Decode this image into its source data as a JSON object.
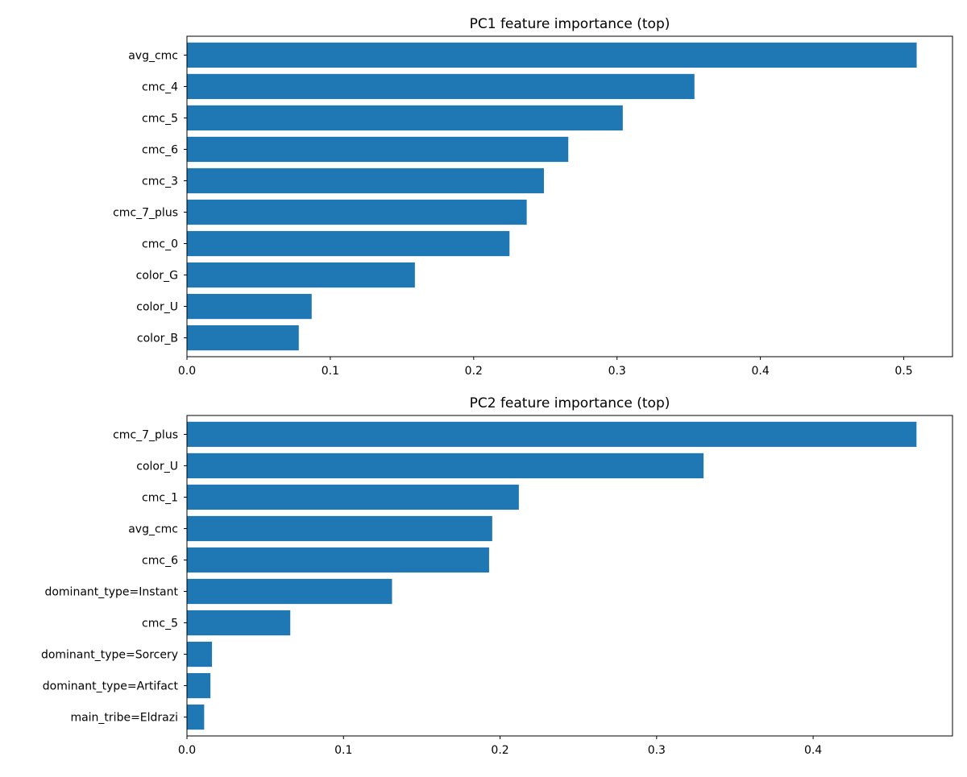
{
  "colors": {
    "bar": "#1f77b4"
  },
  "chart_data": [
    {
      "type": "bar",
      "orientation": "horizontal",
      "title": "PC1 feature importance (top)",
      "xlabel": "",
      "ylabel": "",
      "categories": [
        "avg_cmc",
        "cmc_4",
        "cmc_5",
        "cmc_6",
        "cmc_3",
        "cmc_7_plus",
        "cmc_0",
        "color_G",
        "color_U",
        "color_B"
      ],
      "values": [
        0.509,
        0.354,
        0.304,
        0.266,
        0.249,
        0.237,
        0.225,
        0.159,
        0.087,
        0.078
      ],
      "xlim": [
        0,
        0.534
      ],
      "xticks": [
        0.0,
        0.1,
        0.2,
        0.3,
        0.4,
        0.5
      ],
      "xtick_labels": [
        "0.0",
        "0.1",
        "0.2",
        "0.3",
        "0.4",
        "0.5"
      ],
      "grid": false,
      "legend": "none"
    },
    {
      "type": "bar",
      "orientation": "horizontal",
      "title": "PC2 feature importance (top)",
      "xlabel": "",
      "ylabel": "",
      "categories": [
        "cmc_7_plus",
        "color_U",
        "cmc_1",
        "avg_cmc",
        "cmc_6",
        "dominant_type=Instant",
        "cmc_5",
        "dominant_type=Sorcery",
        "dominant_type=Artifact",
        "main_tribe=Eldrazi"
      ],
      "values": [
        0.466,
        0.33,
        0.212,
        0.195,
        0.193,
        0.131,
        0.066,
        0.016,
        0.015,
        0.011
      ],
      "xlim": [
        0,
        0.489
      ],
      "xticks": [
        0.0,
        0.1,
        0.2,
        0.3,
        0.4
      ],
      "xtick_labels": [
        "0.0",
        "0.1",
        "0.2",
        "0.3",
        "0.4"
      ],
      "grid": false,
      "legend": "none"
    }
  ]
}
